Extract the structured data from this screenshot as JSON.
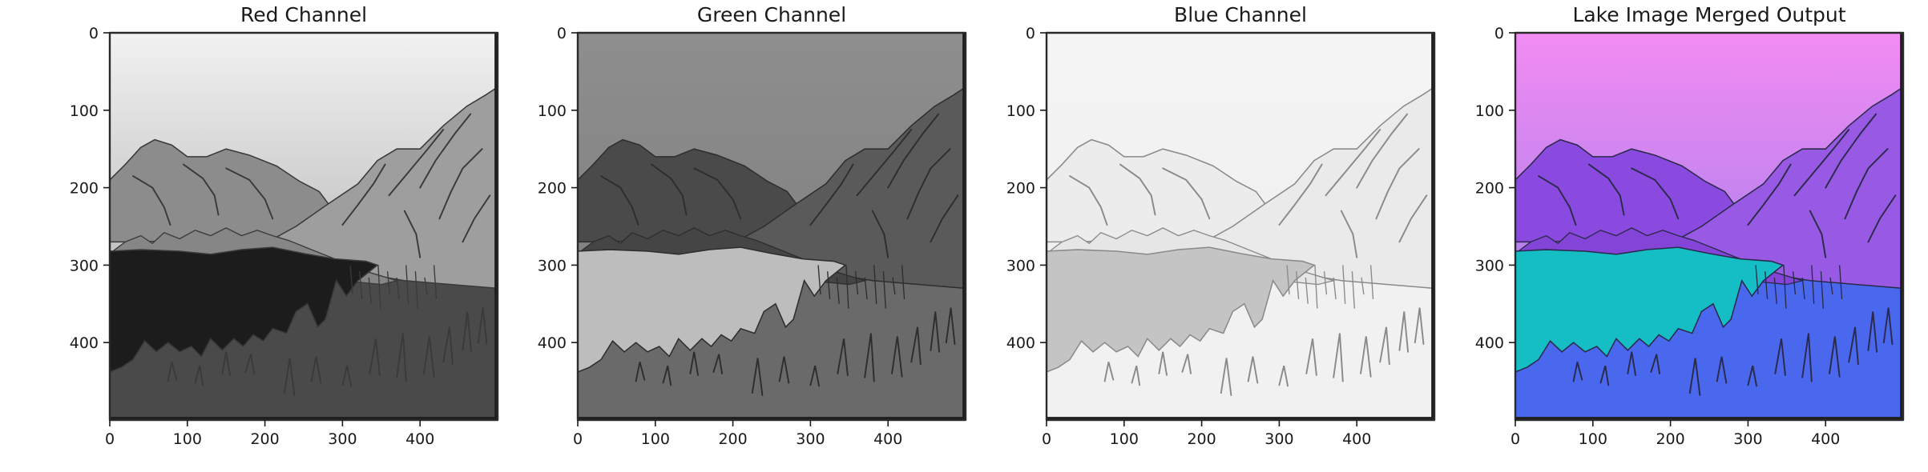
{
  "chart_data": [
    {
      "type": "image",
      "title": "Red Channel",
      "channel": "red",
      "colors": {
        "sky_top": "#f2f2f2",
        "sky_bottom": "#c0c0c0",
        "far_mountain": "#8c8c8c",
        "right_mountain": "#9e9e9e",
        "ridge": "#868686",
        "lake": "#1c1c1c",
        "ground": "#4a4a4a",
        "line": "#3a3a3a"
      },
      "xlim": [
        0,
        500
      ],
      "ylim": [
        500,
        0
      ],
      "xticks": [
        0,
        100,
        200,
        300,
        400
      ],
      "yticks": [
        0,
        100,
        200,
        300,
        400
      ]
    },
    {
      "type": "image",
      "title": "Green Channel",
      "channel": "green",
      "colors": {
        "sky_top": "#8e8e8e",
        "sky_bottom": "#828282",
        "far_mountain": "#4a4a4a",
        "right_mountain": "#5a5a5a",
        "ridge": "#454545",
        "lake": "#bdbdbd",
        "ground": "#6a6a6a",
        "line": "#2e2e2e"
      },
      "xlim": [
        0,
        500
      ],
      "ylim": [
        500,
        0
      ],
      "xticks": [
        0,
        100,
        200,
        300,
        400
      ],
      "yticks": [
        0,
        100,
        200,
        300,
        400
      ]
    },
    {
      "type": "image",
      "title": "Blue Channel",
      "channel": "blue",
      "colors": {
        "sky_top": "#f4f4f4",
        "sky_bottom": "#f0f0f0",
        "far_mountain": "#ececec",
        "right_mountain": "#eaeaea",
        "ridge": "#e6e6e6",
        "lake": "#c4c4c4",
        "ground": "#f1f1f1",
        "line": "#8a8a8a"
      },
      "xlim": [
        0,
        500
      ],
      "ylim": [
        500,
        0
      ],
      "xticks": [
        0,
        100,
        200,
        300,
        400
      ],
      "yticks": [
        0,
        100,
        200,
        300,
        400
      ]
    },
    {
      "type": "image",
      "title": "Lake Image Merged Output",
      "channel": "merged",
      "colors": {
        "sky_top": "#f28cf2",
        "sky_bottom": "#b480ee",
        "far_mountain": "#8a4adf",
        "right_mountain": "#985ae5",
        "ridge": "#8444d8",
        "lake": "#15bec4",
        "ground": "#4a68ee",
        "line": "#2a2a4a"
      },
      "xlim": [
        0,
        500
      ],
      "ylim": [
        500,
        0
      ],
      "xticks": [
        0,
        100,
        200,
        300,
        400
      ],
      "yticks": [
        0,
        100,
        200,
        300,
        400
      ]
    }
  ]
}
